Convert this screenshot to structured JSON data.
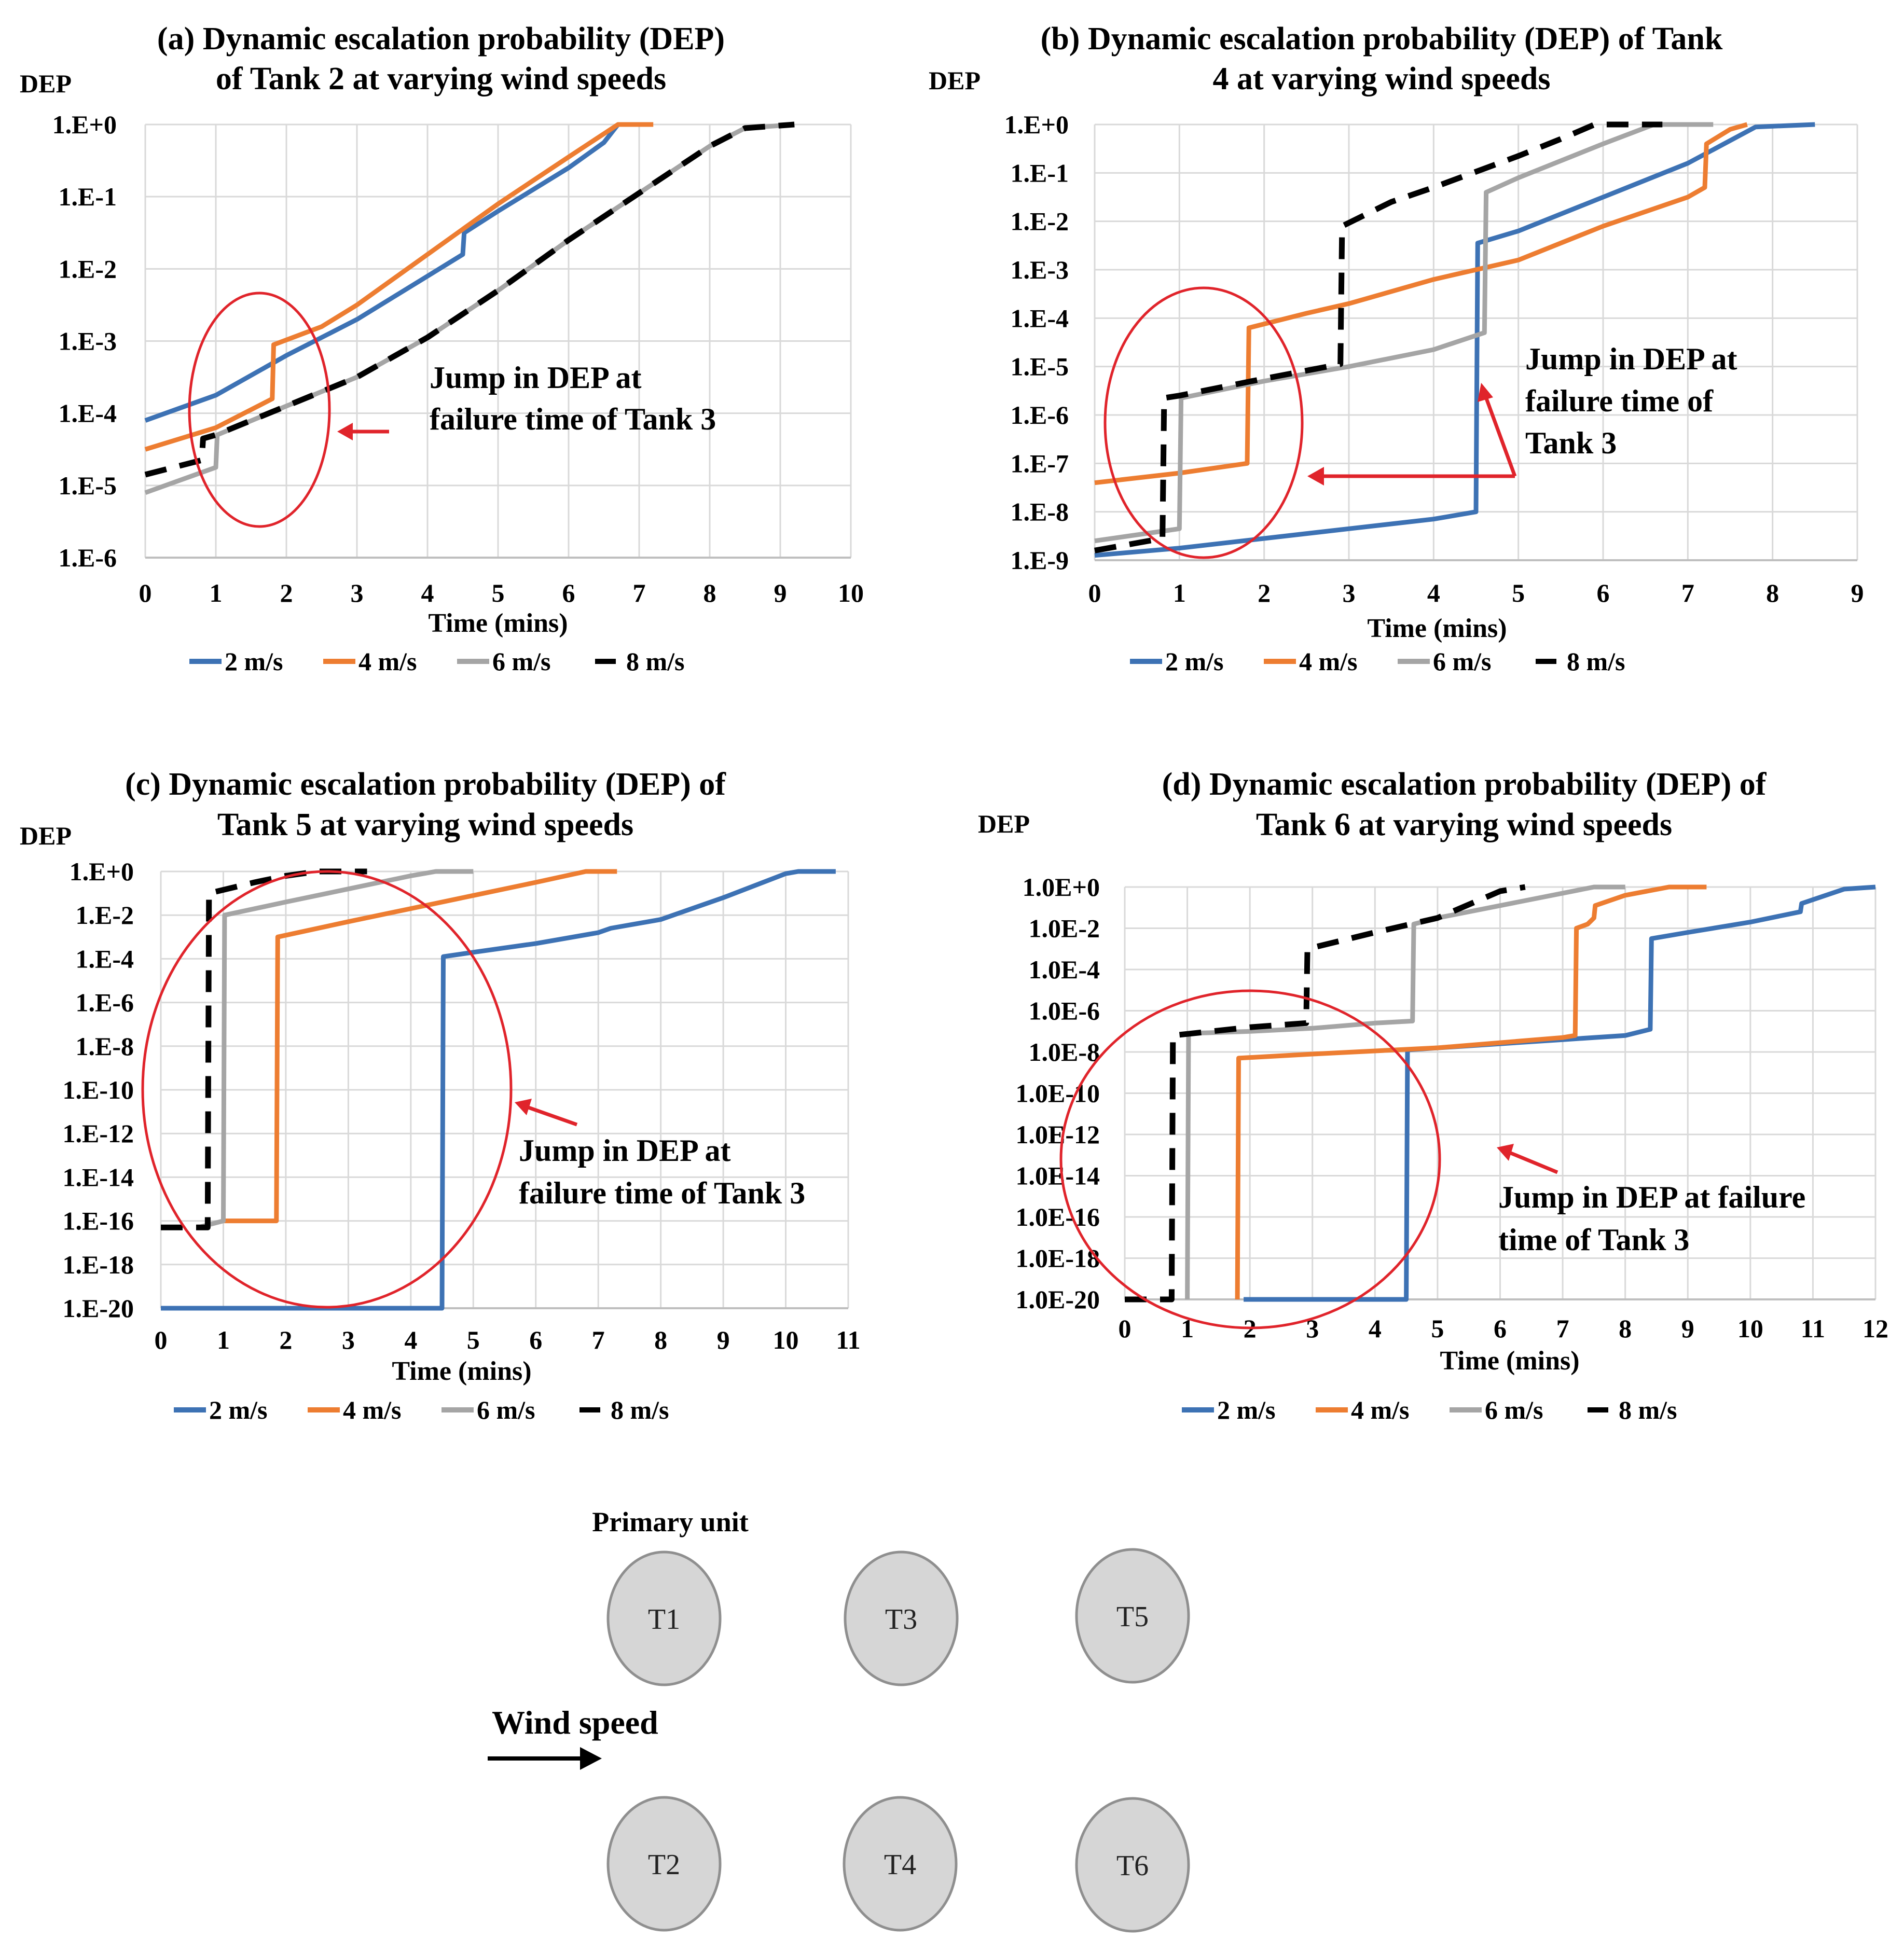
{
  "series_colors": {
    "2 m/s": "#3d72b4",
    "4 m/s": "#ed7d31",
    "6 m/s": "#a5a5a5",
    "8 m/s": "#000000"
  },
  "chart_data": [
    {
      "type": "line",
      "title_lines": [
        "(a) Dynamic escalation probability (DEP)",
        "of Tank 2 at varying wind speeds"
      ],
      "ylabel": "DEP",
      "xlabel": "Time (mins)",
      "yscale": "log",
      "ylim_exp": [
        -6,
        0
      ],
      "yticks": [
        {
          "label": "1.E+0",
          "exp": 0
        },
        {
          "label": "1.E-1",
          "exp": -1
        },
        {
          "label": "1.E-2",
          "exp": -2
        },
        {
          "label": "1.E-3",
          "exp": -3
        },
        {
          "label": "1.E-4",
          "exp": -4
        },
        {
          "label": "1.E-5",
          "exp": -5
        },
        {
          "label": "1.E-6",
          "exp": -6
        }
      ],
      "xlim": [
        0,
        10
      ],
      "xticks": [
        0,
        1,
        2,
        3,
        4,
        5,
        6,
        7,
        8,
        9,
        10
      ],
      "legend": [
        "2 m/s",
        "4 m/s",
        "6 m/s",
        "8 m/s"
      ],
      "series": [
        {
          "name": "2 m/s",
          "points": [
            [
              0,
              -4.1
            ],
            [
              1,
              -3.75
            ],
            [
              2,
              -3.2
            ],
            [
              3,
              -2.7
            ],
            [
              4,
              -2.1
            ],
            [
              4.5,
              -1.8
            ],
            [
              4.52,
              -1.5
            ],
            [
              5,
              -1.2
            ],
            [
              6,
              -0.6
            ],
            [
              6.5,
              -0.25
            ],
            [
              6.7,
              0
            ]
          ]
        },
        {
          "name": "4 m/s",
          "points": [
            [
              0,
              -4.5
            ],
            [
              1,
              -4.2
            ],
            [
              1.8,
              -3.8
            ],
            [
              1.82,
              -3.05
            ],
            [
              2.5,
              -2.8
            ],
            [
              3,
              -2.5
            ],
            [
              4,
              -1.8
            ],
            [
              5,
              -1.1
            ],
            [
              6,
              -0.45
            ],
            [
              6.7,
              0
            ],
            [
              7.2,
              0
            ]
          ]
        },
        {
          "name": "6 m/s",
          "points": [
            [
              0,
              -5.1
            ],
            [
              1,
              -4.75
            ],
            [
              1.02,
              -4.3
            ],
            [
              2,
              -3.9
            ],
            [
              3,
              -3.5
            ],
            [
              4,
              -2.95
            ],
            [
              5,
              -2.3
            ],
            [
              6,
              -1.6
            ],
            [
              7,
              -0.95
            ],
            [
              8,
              -0.3
            ],
            [
              8.5,
              -0.05
            ],
            [
              9.2,
              0
            ]
          ]
        },
        {
          "name": "8 m/s",
          "dashed": true,
          "points": [
            [
              0,
              -4.85
            ],
            [
              0.8,
              -4.65
            ],
            [
              0.82,
              -4.35
            ],
            [
              1,
              -4.3
            ],
            [
              2,
              -3.9
            ],
            [
              3,
              -3.5
            ],
            [
              4,
              -2.95
            ],
            [
              5,
              -2.3
            ],
            [
              6,
              -1.6
            ],
            [
              7,
              -0.95
            ],
            [
              8,
              -0.3
            ],
            [
              8.5,
              -0.05
            ],
            [
              9.2,
              0
            ]
          ]
        }
      ],
      "annotation": [
        "Jump in DEP at",
        "failure time of Tank 3"
      ]
    },
    {
      "type": "line",
      "title_lines": [
        "(b) Dynamic escalation probability (DEP) of Tank",
        "4 at varying wind speeds"
      ],
      "ylabel": "DEP",
      "xlabel": "Time (mins)",
      "yscale": "log",
      "ylim_exp": [
        -9,
        0
      ],
      "yticks": [
        {
          "label": "1.E+0",
          "exp": 0
        },
        {
          "label": "1.E-1",
          "exp": -1
        },
        {
          "label": "1.E-2",
          "exp": -2
        },
        {
          "label": "1.E-3",
          "exp": -3
        },
        {
          "label": "1.E-4",
          "exp": -4
        },
        {
          "label": "1.E-5",
          "exp": -5
        },
        {
          "label": "1.E-6",
          "exp": -6
        },
        {
          "label": "1.E-7",
          "exp": -7
        },
        {
          "label": "1.E-8",
          "exp": -8
        },
        {
          "label": "1.E-9",
          "exp": -9
        }
      ],
      "xlim": [
        0,
        9
      ],
      "xticks": [
        0,
        1,
        2,
        3,
        4,
        5,
        6,
        7,
        8,
        9
      ],
      "legend": [
        "2 m/s",
        "4 m/s",
        "6 m/s",
        "8 m/s"
      ],
      "series": [
        {
          "name": "2 m/s",
          "points": [
            [
              0,
              -8.9
            ],
            [
              1,
              -8.75
            ],
            [
              2,
              -8.55
            ],
            [
              3,
              -8.35
            ],
            [
              4,
              -8.15
            ],
            [
              4.5,
              -8.0
            ],
            [
              4.52,
              -2.45
            ],
            [
              5,
              -2.2
            ],
            [
              6,
              -1.5
            ],
            [
              7,
              -0.8
            ],
            [
              7.8,
              -0.05
            ],
            [
              8.5,
              0
            ]
          ]
        },
        {
          "name": "4 m/s",
          "points": [
            [
              0,
              -7.4
            ],
            [
              1,
              -7.2
            ],
            [
              1.8,
              -7.0
            ],
            [
              1.82,
              -4.2
            ],
            [
              2.5,
              -3.9
            ],
            [
              3,
              -3.7
            ],
            [
              4,
              -3.2
            ],
            [
              5,
              -2.8
            ],
            [
              6,
              -2.1
            ],
            [
              7,
              -1.5
            ],
            [
              7.2,
              -1.3
            ],
            [
              7.22,
              -0.4
            ],
            [
              7.5,
              -0.1
            ],
            [
              7.7,
              0
            ]
          ]
        },
        {
          "name": "6 m/s",
          "points": [
            [
              0,
              -8.6
            ],
            [
              1,
              -8.35
            ],
            [
              1.02,
              -5.65
            ],
            [
              2,
              -5.3
            ],
            [
              3,
              -5.0
            ],
            [
              4,
              -4.65
            ],
            [
              4.6,
              -4.3
            ],
            [
              4.62,
              -1.4
            ],
            [
              5,
              -1.1
            ],
            [
              6,
              -0.4
            ],
            [
              6.6,
              0
            ],
            [
              7.3,
              0
            ]
          ]
        },
        {
          "name": "8 m/s",
          "dashed": true,
          "points": [
            [
              0,
              -8.8
            ],
            [
              0.8,
              -8.55
            ],
            [
              0.82,
              -5.65
            ],
            [
              1,
              -5.6
            ],
            [
              2,
              -5.25
            ],
            [
              2.9,
              -4.95
            ],
            [
              2.92,
              -2.1
            ],
            [
              3.5,
              -1.6
            ],
            [
              4,
              -1.3
            ],
            [
              5,
              -0.65
            ],
            [
              5.5,
              -0.3
            ],
            [
              5.9,
              0
            ],
            [
              6.7,
              0
            ]
          ]
        }
      ],
      "annotation": [
        "Jump in DEP at",
        "failure time of",
        "Tank 3"
      ]
    },
    {
      "type": "line",
      "title_lines": [
        "(c) Dynamic escalation probability (DEP) of",
        "Tank 5 at varying wind speeds"
      ],
      "ylabel": "DEP",
      "xlabel": "Time (mins)",
      "yscale": "log",
      "ylim_exp": [
        -20,
        0
      ],
      "yticks": [
        {
          "label": "1.E+0",
          "exp": 0
        },
        {
          "label": "1.E-2",
          "exp": -2
        },
        {
          "label": "1.E-4",
          "exp": -4
        },
        {
          "label": "1.E-6",
          "exp": -6
        },
        {
          "label": "1.E-8",
          "exp": -8
        },
        {
          "label": "1.E-10",
          "exp": -10
        },
        {
          "label": "1.E-12",
          "exp": -12
        },
        {
          "label": "1.E-14",
          "exp": -14
        },
        {
          "label": "1.E-16",
          "exp": -16
        },
        {
          "label": "1.E-18",
          "exp": -18
        },
        {
          "label": "1.E-20",
          "exp": -20
        }
      ],
      "xlim": [
        0,
        11
      ],
      "xticks": [
        0,
        1,
        2,
        3,
        4,
        5,
        6,
        7,
        8,
        9,
        10,
        11
      ],
      "legend": [
        "2 m/s",
        "4 m/s",
        "6 m/s",
        "8 m/s"
      ],
      "series": [
        {
          "name": "2 m/s",
          "points": [
            [
              0,
              -20
            ],
            [
              4.5,
              -20
            ],
            [
              4.52,
              -3.9
            ],
            [
              5,
              -3.7
            ],
            [
              6,
              -3.3
            ],
            [
              7,
              -2.8
            ],
            [
              7.2,
              -2.6
            ],
            [
              8,
              -2.2
            ],
            [
              8.4,
              -1.8
            ],
            [
              9,
              -1.2
            ],
            [
              10,
              -0.1
            ],
            [
              10.2,
              0
            ],
            [
              10.8,
              0
            ]
          ]
        },
        {
          "name": "4 m/s",
          "points": [
            [
              1,
              -16
            ],
            [
              1.85,
              -16
            ],
            [
              1.87,
              -3.0
            ],
            [
              3,
              -2.3
            ],
            [
              4,
              -1.7
            ],
            [
              5,
              -1.1
            ],
            [
              6,
              -0.5
            ],
            [
              6.8,
              0
            ],
            [
              7.3,
              0
            ]
          ]
        },
        {
          "name": "6 m/s",
          "points": [
            [
              0.6,
              -16.3
            ],
            [
              1.0,
              -16.0
            ],
            [
              1.02,
              -2.0
            ],
            [
              2,
              -1.4
            ],
            [
              3,
              -0.8
            ],
            [
              4,
              -0.2
            ],
            [
              4.4,
              0
            ],
            [
              5,
              0
            ]
          ]
        },
        {
          "name": "8 m/s",
          "dashed": true,
          "points": [
            [
              0,
              -16.3
            ],
            [
              0.75,
              -16.3
            ],
            [
              0.77,
              -1.0
            ],
            [
              1.5,
              -0.5
            ],
            [
              2,
              -0.2
            ],
            [
              2.5,
              0
            ],
            [
              3.3,
              0
            ]
          ]
        }
      ],
      "annotation": [
        "Jump in DEP at",
        "failure time of Tank 3"
      ]
    },
    {
      "type": "line",
      "title_lines": [
        "(d) Dynamic escalation probability (DEP) of",
        "Tank 6 at varying wind speeds"
      ],
      "ylabel": "DEP",
      "xlabel": "Time (mins)",
      "yscale": "log",
      "ylim_exp": [
        -20,
        0
      ],
      "yticks": [
        {
          "label": "1.0E+0",
          "exp": 0
        },
        {
          "label": "1.0E-2",
          "exp": -2
        },
        {
          "label": "1.0E-4",
          "exp": -4
        },
        {
          "label": "1.0E-6",
          "exp": -6
        },
        {
          "label": "1.0E-8",
          "exp": -8
        },
        {
          "label": "1.0E-10",
          "exp": -10
        },
        {
          "label": "1.0E-12",
          "exp": -12
        },
        {
          "label": "1.0E-14",
          "exp": -14
        },
        {
          "label": "1.0E-16",
          "exp": -16
        },
        {
          "label": "1.0E-18",
          "exp": -18
        },
        {
          "label": "1.0E-20",
          "exp": -20
        }
      ],
      "xlim": [
        0,
        12
      ],
      "xticks": [
        0,
        1,
        2,
        3,
        4,
        5,
        6,
        7,
        8,
        9,
        10,
        11,
        12
      ],
      "legend": [
        "2 m/s",
        "4 m/s",
        "6 m/s",
        "8 m/s"
      ],
      "series": [
        {
          "name": "2 m/s",
          "points": [
            [
              1.9,
              -20
            ],
            [
              4.5,
              -20
            ],
            [
              4.52,
              -7.9
            ],
            [
              6,
              -7.6
            ],
            [
              7,
              -7.4
            ],
            [
              8,
              -7.2
            ],
            [
              8.4,
              -6.9
            ],
            [
              8.42,
              -2.5
            ],
            [
              9,
              -2.2
            ],
            [
              10,
              -1.7
            ],
            [
              10.8,
              -1.2
            ],
            [
              10.82,
              -0.8
            ],
            [
              11.5,
              -0.1
            ],
            [
              12,
              0
            ]
          ]
        },
        {
          "name": "4 m/s",
          "points": [
            [
              1.8,
              -20
            ],
            [
              1.82,
              -8.3
            ],
            [
              3,
              -8.1
            ],
            [
              5,
              -7.8
            ],
            [
              7,
              -7.3
            ],
            [
              7.2,
              -7.2
            ],
            [
              7.22,
              -2.0
            ],
            [
              7.4,
              -1.8
            ],
            [
              7.5,
              -1.5
            ],
            [
              7.52,
              -0.9
            ],
            [
              8,
              -0.4
            ],
            [
              8.7,
              0
            ],
            [
              9.3,
              0
            ]
          ]
        },
        {
          "name": "6 m/s",
          "points": [
            [
              1.0,
              -20
            ],
            [
              1.02,
              -7.1
            ],
            [
              2,
              -7.0
            ],
            [
              3,
              -6.85
            ],
            [
              4,
              -6.6
            ],
            [
              4.6,
              -6.5
            ],
            [
              4.62,
              -1.8
            ],
            [
              5,
              -1.5
            ],
            [
              6,
              -0.9
            ],
            [
              7,
              -0.3
            ],
            [
              7.5,
              0
            ],
            [
              8,
              0
            ]
          ]
        },
        {
          "name": "8 m/s",
          "dashed": true,
          "points": [
            [
              0,
              -20
            ],
            [
              0.75,
              -20
            ],
            [
              0.77,
              -7.2
            ],
            [
              2,
              -6.8
            ],
            [
              2.9,
              -6.6
            ],
            [
              2.92,
              -3.0
            ],
            [
              4,
              -2.2
            ],
            [
              5,
              -1.5
            ],
            [
              6,
              -0.2
            ],
            [
              6.4,
              0
            ]
          ]
        }
      ],
      "annotation": [
        "Jump in DEP at failure",
        "time of Tank 3"
      ]
    }
  ],
  "diagram": {
    "primary_label": "Primary unit",
    "wind_label": "Wind speed",
    "tanks": [
      "T1",
      "T3",
      "T5",
      "T2",
      "T4",
      "T6"
    ]
  }
}
